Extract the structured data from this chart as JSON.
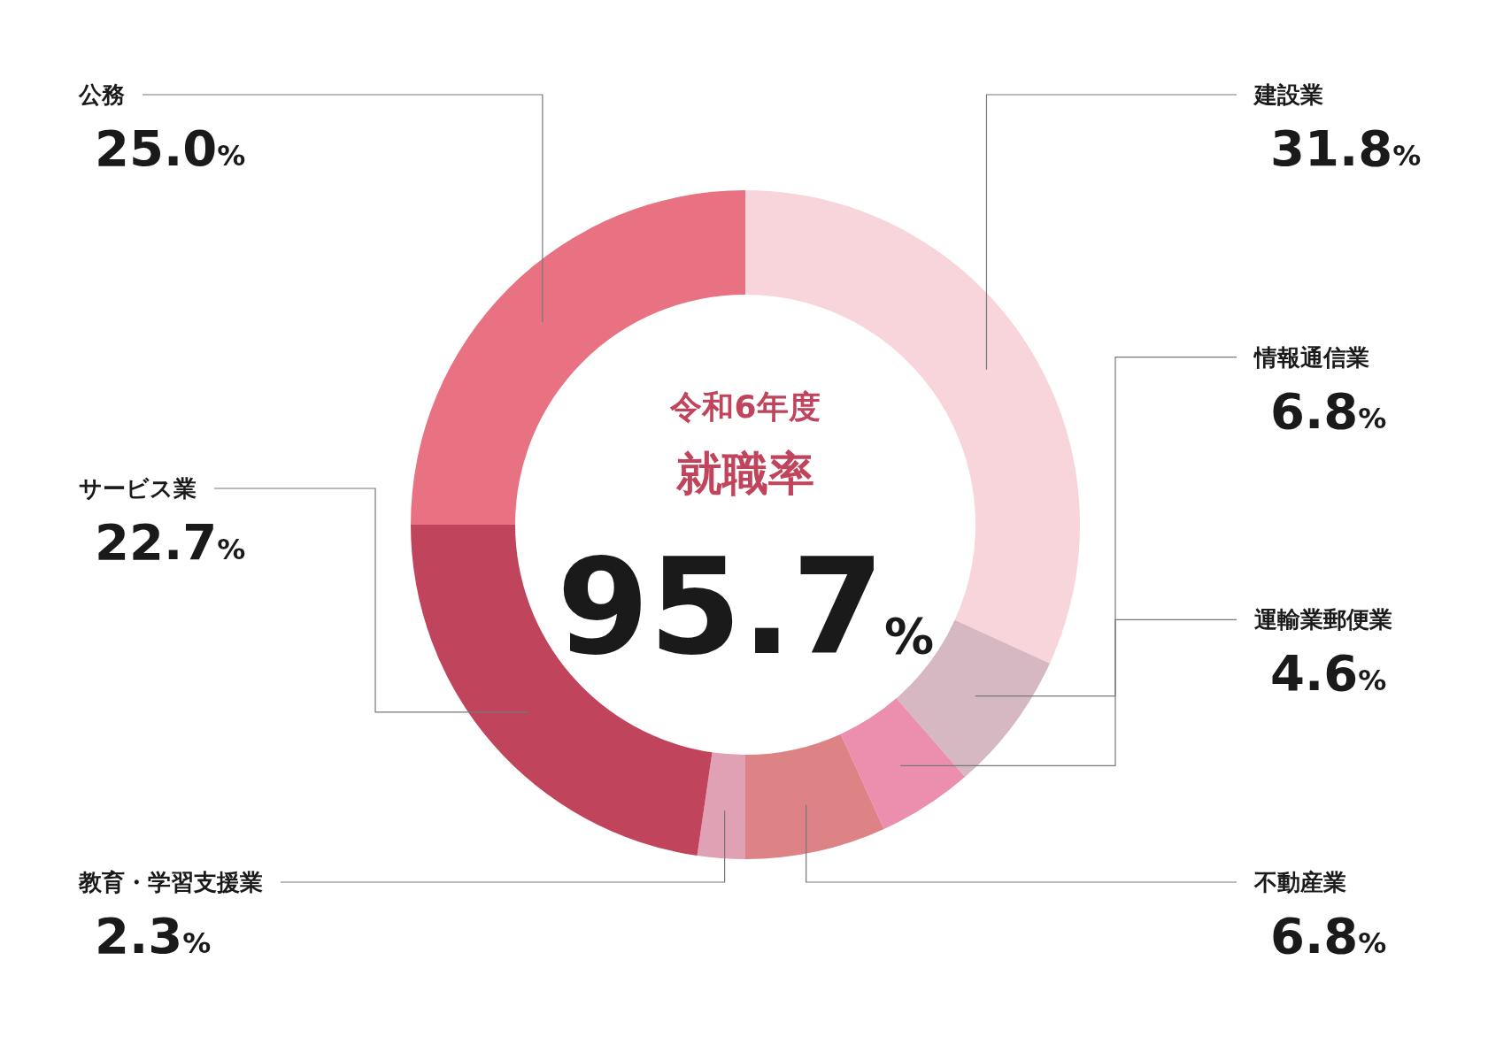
{
  "chart_data": {
    "type": "donut",
    "title": "令和6年度",
    "subtitle": "就職率",
    "annotations": [
      "95.7%"
    ],
    "categories": [
      "建設業",
      "情報通信業",
      "運輸業郵便業",
      "不動産業",
      "教育・学習支援業",
      "サービス業",
      "公務"
    ],
    "values": [
      31.8,
      6.8,
      4.6,
      6.8,
      2.3,
      22.7,
      25.0
    ],
    "value_labels": [
      "31.8%",
      "6.8%",
      "4.6%",
      "6.8%",
      "2.3%",
      "22.7%",
      "25.0%"
    ],
    "colors": [
      "#f8d5da",
      "#d5b8c1",
      "#ec8fae",
      "#de8385",
      "#dfa1b3",
      "#c0445c",
      "#e97282"
    ]
  }
}
